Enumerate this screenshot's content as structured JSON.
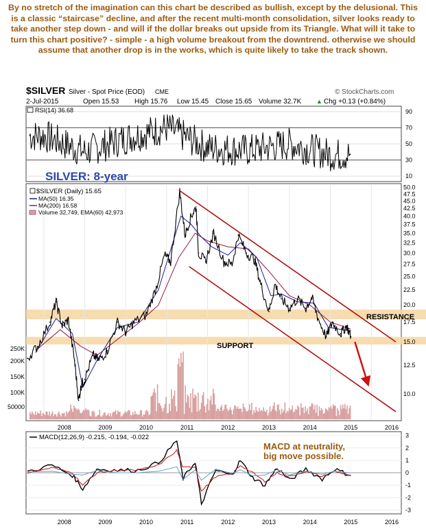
{
  "commentary": "By no stretch of the imagination can this chart be described as bullish, except by the delusional. This is a classic “staircase” decline, and after the recent multi-month consolidation, silver looks ready to take another step down - and will if the dollar breaks out upside from its Triangle. What will it take to turn this chart positive? - simple - a high volume breakout from the downtrend. otherwise we should assume that another drop is in the works, which is quite likely to take the track shown.",
  "header": {
    "symbol": "$SILVER",
    "name": "Silver - Spot Price (EOD)",
    "exchange": "CME",
    "source": "© StockCharts.com",
    "date": "2-Jul-2015",
    "open": "Open 15.53",
    "high": "High 15.76",
    "low": "Low 15.45",
    "close": "Close 15.65",
    "volume": "Volume 32.7K",
    "change": "Chg +0.13 (+0.84%)",
    "change_arrow": "▲"
  },
  "colors": {
    "price": "#000000",
    "ma50": "#1a1a8c",
    "ma200": "#8b1a4a",
    "trendline": "#b01010",
    "band": "#f6d6a2",
    "volume": "#d8a0a0",
    "macd": "#000000",
    "signal": "#c0101a",
    "histogram": "#5fa0c8",
    "annotation_blue": "#2b48a8",
    "annotation_brown": "#9a5b12"
  },
  "chart_data": [
    {
      "type": "line",
      "panel": "RSI",
      "legend": "RSI(14) 36.68",
      "y_ticks": [
        "90",
        "70",
        "50",
        "30",
        "10"
      ],
      "overbought": 70,
      "oversold": 30,
      "ylim": [
        5,
        95
      ],
      "x": [
        "2008",
        "2009",
        "2010",
        "2011",
        "2012",
        "2013",
        "2014",
        "2015"
      ],
      "series": [
        {
          "name": "RSI(14)",
          "values": [
            60,
            40,
            57,
            70,
            45,
            42,
            50,
            36.68
          ]
        }
      ]
    },
    {
      "type": "line",
      "panel": "Price",
      "title": "SILVER: 8-year",
      "legend": [
        {
          "label": "$SILVER (Daily) 15.65",
          "icon": "bar"
        },
        {
          "label": "MA(50) 16.35",
          "icon": "line-blue"
        },
        {
          "label": "MA(200) 16.58",
          "icon": "line-maroon"
        },
        {
          "label": "Volume 32,749, EMA(60) 42,973",
          "icon": "volume"
        }
      ],
      "y_scale": "log",
      "y_ticks": [
        "50.0",
        "47.5",
        "45.0",
        "42.5",
        "40.0",
        "37.5",
        "35.0",
        "32.5",
        "30.0",
        "27.5",
        "25.0",
        "22.5",
        "20.0",
        "17.5",
        "15.0",
        "12.5",
        "10.0"
      ],
      "volume_ticks": [
        "250K",
        "200K",
        "150K",
        "100K",
        "50000"
      ],
      "x_ticks": [
        "2008",
        "2009",
        "2010",
        "2011",
        "2012",
        "2013",
        "2014",
        "2015",
        "2016"
      ],
      "annotations": {
        "resistance": "RESISTANCE",
        "support": "SUPPORT"
      },
      "resistance_zone": [
        17.9,
        19.3
      ],
      "support_zone": [
        14.7,
        15.6
      ],
      "channel_upper": [
        [
          2011.3,
          49.0
        ],
        [
          2016.6,
          15.0
        ]
      ],
      "channel_lower": [
        [
          2011.55,
          27.0
        ],
        [
          2016.6,
          8.7
        ]
      ],
      "projection": [
        [
          2015.6,
          15.0
        ],
        [
          2015.9,
          11.0
        ]
      ],
      "price": [
        {
          "x": 2007.6,
          "y": 13.2
        },
        {
          "x": 2007.85,
          "y": 14.5
        },
        {
          "x": 2008.15,
          "y": 17.5
        },
        {
          "x": 2008.3,
          "y": 20.5
        },
        {
          "x": 2008.45,
          "y": 17.0
        },
        {
          "x": 2008.6,
          "y": 17.8
        },
        {
          "x": 2008.75,
          "y": 13.0
        },
        {
          "x": 2008.85,
          "y": 9.5
        },
        {
          "x": 2008.92,
          "y": 10.8
        },
        {
          "x": 2009.0,
          "y": 11.2
        },
        {
          "x": 2009.2,
          "y": 13.5
        },
        {
          "x": 2009.35,
          "y": 13.0
        },
        {
          "x": 2009.55,
          "y": 14.0
        },
        {
          "x": 2009.8,
          "y": 17.5
        },
        {
          "x": 2010.0,
          "y": 16.2
        },
        {
          "x": 2010.2,
          "y": 17.5
        },
        {
          "x": 2010.5,
          "y": 18.5
        },
        {
          "x": 2010.75,
          "y": 23.0
        },
        {
          "x": 2010.95,
          "y": 29.5
        },
        {
          "x": 2011.1,
          "y": 28.0
        },
        {
          "x": 2011.32,
          "y": 48.5
        },
        {
          "x": 2011.45,
          "y": 34.5
        },
        {
          "x": 2011.6,
          "y": 40.0
        },
        {
          "x": 2011.72,
          "y": 43.0
        },
        {
          "x": 2011.78,
          "y": 30.0
        },
        {
          "x": 2011.95,
          "y": 28.0
        },
        {
          "x": 2012.15,
          "y": 35.0
        },
        {
          "x": 2012.4,
          "y": 28.0
        },
        {
          "x": 2012.6,
          "y": 27.5
        },
        {
          "x": 2012.75,
          "y": 34.5
        },
        {
          "x": 2012.95,
          "y": 30.0
        },
        {
          "x": 2013.15,
          "y": 28.5
        },
        {
          "x": 2013.3,
          "y": 23.5
        },
        {
          "x": 2013.5,
          "y": 19.0
        },
        {
          "x": 2013.65,
          "y": 23.5
        },
        {
          "x": 2013.8,
          "y": 21.0
        },
        {
          "x": 2014.0,
          "y": 19.5
        },
        {
          "x": 2014.2,
          "y": 21.0
        },
        {
          "x": 2014.4,
          "y": 19.5
        },
        {
          "x": 2014.55,
          "y": 21.2
        },
        {
          "x": 2014.7,
          "y": 18.0
        },
        {
          "x": 2014.9,
          "y": 15.6
        },
        {
          "x": 2015.05,
          "y": 17.5
        },
        {
          "x": 2015.25,
          "y": 16.0
        },
        {
          "x": 2015.4,
          "y": 17.0
        },
        {
          "x": 2015.5,
          "y": 15.65
        }
      ],
      "ma200": [
        {
          "x": 2007.8,
          "y": 14.0
        },
        {
          "x": 2008.4,
          "y": 16.5
        },
        {
          "x": 2008.9,
          "y": 14.5
        },
        {
          "x": 2009.3,
          "y": 13.5
        },
        {
          "x": 2009.8,
          "y": 15.3
        },
        {
          "x": 2010.3,
          "y": 17.3
        },
        {
          "x": 2010.8,
          "y": 20.0
        },
        {
          "x": 2011.3,
          "y": 29.0
        },
        {
          "x": 2011.7,
          "y": 35.0
        },
        {
          "x": 2012.0,
          "y": 33.0
        },
        {
          "x": 2012.5,
          "y": 31.5
        },
        {
          "x": 2013.0,
          "y": 31.0
        },
        {
          "x": 2013.5,
          "y": 26.0
        },
        {
          "x": 2014.0,
          "y": 21.5
        },
        {
          "x": 2014.5,
          "y": 20.0
        },
        {
          "x": 2015.0,
          "y": 17.5
        },
        {
          "x": 2015.5,
          "y": 16.58
        }
      ],
      "ma50": [
        {
          "x": 2007.8,
          "y": 13.8
        },
        {
          "x": 2008.3,
          "y": 18.0
        },
        {
          "x": 2008.7,
          "y": 16.0
        },
        {
          "x": 2008.95,
          "y": 10.5
        },
        {
          "x": 2009.3,
          "y": 13.0
        },
        {
          "x": 2009.8,
          "y": 16.8
        },
        {
          "x": 2010.3,
          "y": 17.5
        },
        {
          "x": 2010.8,
          "y": 22.5
        },
        {
          "x": 2011.35,
          "y": 40.0
        },
        {
          "x": 2011.6,
          "y": 37.5
        },
        {
          "x": 2011.85,
          "y": 34.0
        },
        {
          "x": 2012.1,
          "y": 31.5
        },
        {
          "x": 2012.5,
          "y": 29.5
        },
        {
          "x": 2012.8,
          "y": 32.5
        },
        {
          "x": 2013.2,
          "y": 29.0
        },
        {
          "x": 2013.55,
          "y": 21.5
        },
        {
          "x": 2013.8,
          "y": 21.8
        },
        {
          "x": 2014.2,
          "y": 20.5
        },
        {
          "x": 2014.6,
          "y": 20.3
        },
        {
          "x": 2014.95,
          "y": 16.8
        },
        {
          "x": 2015.3,
          "y": 16.5
        },
        {
          "x": 2015.5,
          "y": 16.35
        }
      ],
      "volume_last": 32749,
      "volume_ema60": 42973
    },
    {
      "type": "line",
      "panel": "MACD",
      "legend": "MACD(12,26,9) -0.215, -0.194, -0.022",
      "annotation": "MACD at neutrality, big move possible.",
      "y_ticks": [
        "3",
        "2",
        "1",
        "0",
        "-1",
        "-2",
        "-3"
      ],
      "ylim": [
        -3.2,
        3.2
      ],
      "x_ticks": [
        "2008",
        "2009",
        "2010",
        "2011",
        "2012",
        "2013",
        "2014",
        "2015",
        "2016"
      ],
      "series": [
        {
          "name": "MACD",
          "x": [
            2007.6,
            2008.2,
            2008.7,
            2008.95,
            2009.3,
            2009.8,
            2010.3,
            2010.8,
            2011.25,
            2011.4,
            2011.7,
            2011.85,
            2012.2,
            2012.6,
            2012.8,
            2013.1,
            2013.4,
            2013.7,
            2014.0,
            2014.4,
            2014.8,
            2015.1,
            2015.5
          ],
          "values": [
            0.1,
            0.6,
            -0.2,
            -1.3,
            0.3,
            0.2,
            0.2,
            0.8,
            2.6,
            -0.5,
            0.9,
            -2.5,
            0.2,
            -0.2,
            1.0,
            -0.4,
            -1.0,
            0.4,
            -0.6,
            0.3,
            -0.5,
            0.3,
            -0.215
          ]
        },
        {
          "name": "Signal",
          "x": [
            2007.6,
            2008.2,
            2008.7,
            2008.95,
            2009.3,
            2009.8,
            2010.3,
            2010.8,
            2011.25,
            2011.4,
            2011.7,
            2011.85,
            2012.2,
            2012.6,
            2012.8,
            2013.1,
            2013.4,
            2013.7,
            2014.0,
            2014.4,
            2014.8,
            2015.1,
            2015.5
          ],
          "values": [
            0.0,
            0.4,
            0.0,
            -1.0,
            0.0,
            0.2,
            0.2,
            0.6,
            1.8,
            0.4,
            0.5,
            -1.5,
            -0.3,
            -0.1,
            0.6,
            0.0,
            -0.7,
            0.0,
            -0.3,
            0.1,
            -0.3,
            0.1,
            -0.194
          ]
        }
      ]
    }
  ]
}
